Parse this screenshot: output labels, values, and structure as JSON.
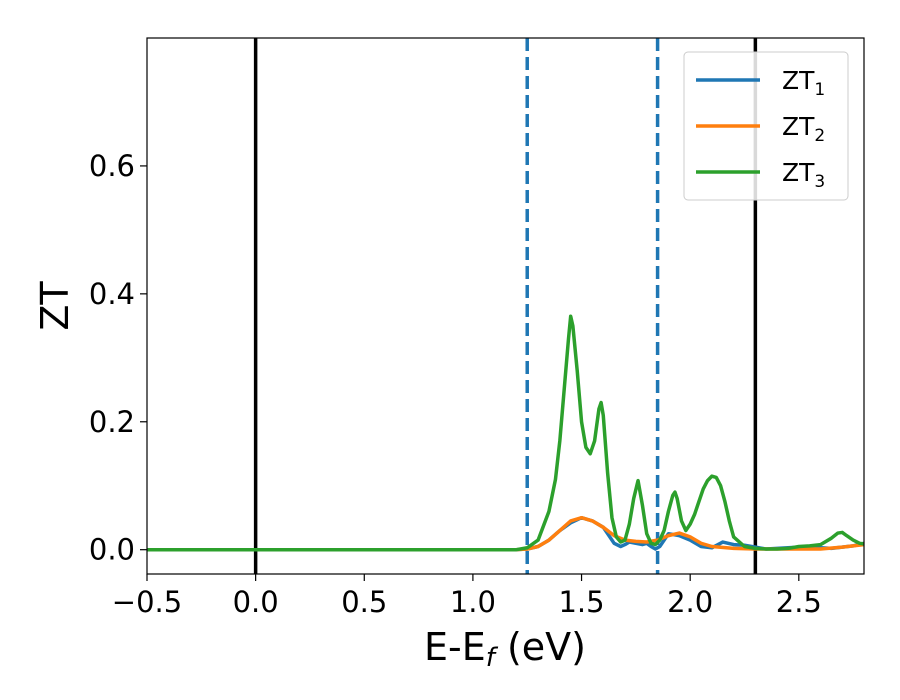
{
  "chart_data": {
    "type": "line",
    "xlabel": "E-E",
    "xlabel_sub": "f",
    "xlabel_unit": " (eV)",
    "ylabel": "ZT",
    "xlim": [
      -0.5,
      2.8
    ],
    "ylim": [
      -0.038,
      0.8
    ],
    "x_ticks": [
      -0.5,
      0.0,
      0.5,
      1.0,
      1.5,
      2.0,
      2.5
    ],
    "x_tick_labels": [
      "−0.5",
      "0.0",
      "0.5",
      "1.0",
      "1.5",
      "2.0",
      "2.5"
    ],
    "y_ticks": [
      0.0,
      0.2,
      0.4,
      0.6
    ],
    "y_tick_labels": [
      "0.0",
      "0.2",
      "0.4",
      "0.6"
    ],
    "grid": false,
    "legend_position": "top-right",
    "vertical_lines": [
      {
        "x": 0.0,
        "style": "solid",
        "color": "#000000"
      },
      {
        "x": 2.3,
        "style": "solid",
        "color": "#000000"
      },
      {
        "x": 1.25,
        "style": "dashed",
        "color": "#1f77b4"
      },
      {
        "x": 1.85,
        "style": "dashed",
        "color": "#1f77b4"
      }
    ],
    "series": [
      {
        "name": "ZT",
        "name_sub": "1",
        "color": "#1f77b4",
        "x": [
          -0.5,
          1.2,
          1.25,
          1.3,
          1.35,
          1.4,
          1.45,
          1.5,
          1.55,
          1.6,
          1.62,
          1.65,
          1.68,
          1.7,
          1.72,
          1.75,
          1.78,
          1.8,
          1.82,
          1.84,
          1.86,
          1.88,
          1.9,
          1.95,
          2.0,
          2.05,
          2.1,
          2.15,
          2.2,
          2.25,
          2.3,
          2.35,
          2.4,
          2.45,
          2.5,
          2.55,
          2.6,
          2.65,
          2.7,
          2.75,
          2.8
        ],
        "y": [
          0.0,
          0.0,
          0.001,
          0.005,
          0.015,
          0.03,
          0.042,
          0.05,
          0.045,
          0.035,
          0.025,
          0.01,
          0.005,
          0.008,
          0.012,
          0.01,
          0.008,
          0.01,
          0.005,
          0.001,
          0.005,
          0.015,
          0.025,
          0.022,
          0.015,
          0.005,
          0.003,
          0.012,
          0.008,
          0.007,
          0.004,
          0.001,
          0.002,
          0.003,
          0.004,
          0.004,
          0.003,
          0.002,
          0.004,
          0.006,
          0.01
        ]
      },
      {
        "name": "ZT",
        "name_sub": "2",
        "color": "#ff7f0e",
        "x": [
          -0.5,
          1.2,
          1.25,
          1.3,
          1.35,
          1.4,
          1.45,
          1.5,
          1.55,
          1.6,
          1.65,
          1.7,
          1.75,
          1.8,
          1.85,
          1.9,
          1.95,
          2.0,
          2.05,
          2.1,
          2.2,
          2.3,
          2.4,
          2.5,
          2.6,
          2.7,
          2.8
        ],
        "y": [
          0.0,
          0.0,
          0.001,
          0.005,
          0.015,
          0.03,
          0.045,
          0.05,
          0.045,
          0.035,
          0.022,
          0.015,
          0.013,
          0.012,
          0.015,
          0.022,
          0.026,
          0.02,
          0.01,
          0.005,
          0.002,
          0.001,
          0.001,
          0.001,
          0.001,
          0.004,
          0.008
        ]
      },
      {
        "name": "ZT",
        "name_sub": "3",
        "color": "#2ca02c",
        "x": [
          -0.5,
          1.2,
          1.25,
          1.3,
          1.35,
          1.38,
          1.4,
          1.42,
          1.44,
          1.45,
          1.46,
          1.48,
          1.5,
          1.52,
          1.54,
          1.56,
          1.58,
          1.59,
          1.6,
          1.62,
          1.64,
          1.66,
          1.68,
          1.7,
          1.72,
          1.74,
          1.76,
          1.78,
          1.8,
          1.82,
          1.84,
          1.86,
          1.88,
          1.9,
          1.92,
          1.93,
          1.94,
          1.96,
          1.98,
          2.0,
          2.02,
          2.04,
          2.06,
          2.08,
          2.1,
          2.12,
          2.14,
          2.16,
          2.18,
          2.2,
          2.25,
          2.3,
          2.35,
          2.4,
          2.45,
          2.5,
          2.55,
          2.6,
          2.65,
          2.68,
          2.7,
          2.72,
          2.75,
          2.78,
          2.8
        ],
        "y": [
          0.0,
          0.0,
          0.003,
          0.015,
          0.06,
          0.11,
          0.17,
          0.25,
          0.33,
          0.365,
          0.35,
          0.28,
          0.2,
          0.16,
          0.15,
          0.17,
          0.22,
          0.23,
          0.21,
          0.12,
          0.05,
          0.02,
          0.012,
          0.015,
          0.04,
          0.08,
          0.108,
          0.07,
          0.025,
          0.01,
          0.008,
          0.015,
          0.03,
          0.06,
          0.085,
          0.09,
          0.08,
          0.045,
          0.03,
          0.04,
          0.055,
          0.075,
          0.095,
          0.108,
          0.115,
          0.113,
          0.1,
          0.075,
          0.045,
          0.02,
          0.005,
          0.002,
          0.001,
          0.001,
          0.002,
          0.005,
          0.006,
          0.008,
          0.018,
          0.026,
          0.027,
          0.022,
          0.015,
          0.01,
          0.009
        ]
      }
    ]
  }
}
